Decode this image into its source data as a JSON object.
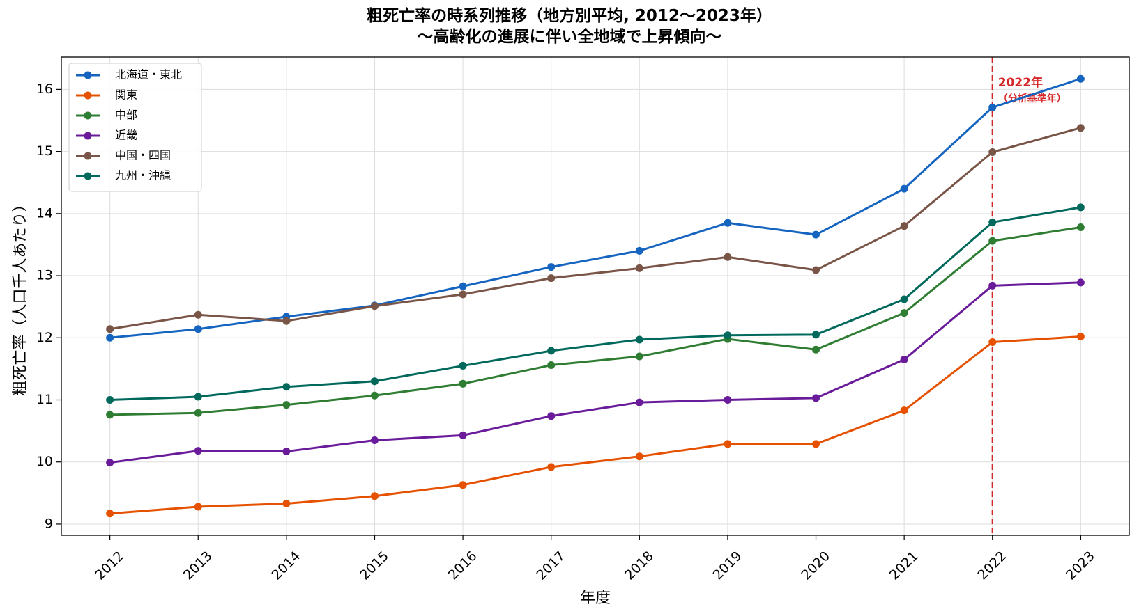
{
  "chart_data": {
    "type": "line",
    "title": "粗死亡率の時系列推移（地方別平均, 2012〜2023年）",
    "subtitle": "〜高齢化の進展に伴い全地域で上昇傾向〜",
    "xlabel": "年度",
    "ylabel": "粗死亡率（人口千人あたり）",
    "x": [
      2012,
      2013,
      2014,
      2015,
      2016,
      2017,
      2018,
      2019,
      2020,
      2021,
      2022,
      2023
    ],
    "x_tick_labels": [
      "2012",
      "2013",
      "2014",
      "2015",
      "2016",
      "2017",
      "2018",
      "2019",
      "2020",
      "2021",
      "2022",
      "2023"
    ],
    "ylim": [
      8.82,
      16.52
    ],
    "y_ticks": [
      9,
      10,
      11,
      12,
      13,
      14,
      15,
      16
    ],
    "y_tick_labels": [
      "9",
      "10",
      "11",
      "12",
      "13",
      "14",
      "15",
      "16"
    ],
    "grid": true,
    "legend_position": "top-left",
    "series": [
      {
        "name": "北海道・東北",
        "color": "#1565c0",
        "values": [
          12.0,
          12.14,
          12.34,
          12.52,
          12.83,
          13.14,
          13.4,
          13.85,
          13.66,
          14.4,
          15.71,
          16.17
        ]
      },
      {
        "name": "関東",
        "color": "#e65100",
        "values": [
          9.17,
          9.28,
          9.33,
          9.45,
          9.63,
          9.92,
          10.09,
          10.29,
          10.29,
          10.83,
          11.93,
          12.02
        ]
      },
      {
        "name": "中部",
        "color": "#2e7d32",
        "values": [
          10.76,
          10.79,
          10.92,
          11.07,
          11.26,
          11.56,
          11.7,
          11.98,
          11.81,
          12.4,
          13.56,
          13.78
        ]
      },
      {
        "name": "近畿",
        "color": "#6a1b9a",
        "values": [
          9.99,
          10.18,
          10.17,
          10.35,
          10.43,
          10.74,
          10.96,
          11.0,
          11.03,
          11.65,
          12.84,
          12.89
        ]
      },
      {
        "name": "中国・四国",
        "color": "#795548",
        "values": [
          12.14,
          12.37,
          12.27,
          12.51,
          12.7,
          12.96,
          13.12,
          13.3,
          13.09,
          13.8,
          14.99,
          15.38
        ]
      },
      {
        "name": "九州・沖縄",
        "color": "#00695c",
        "values": [
          11.0,
          11.05,
          11.21,
          11.3,
          11.55,
          11.79,
          11.97,
          12.04,
          12.05,
          12.62,
          13.86,
          14.1
        ]
      }
    ],
    "annotations": [
      {
        "x": 2022,
        "label_line1": "2022年",
        "label_line2": "（分析基準年）",
        "color": "#d62728",
        "style": "dashed-vertical-line"
      }
    ]
  }
}
